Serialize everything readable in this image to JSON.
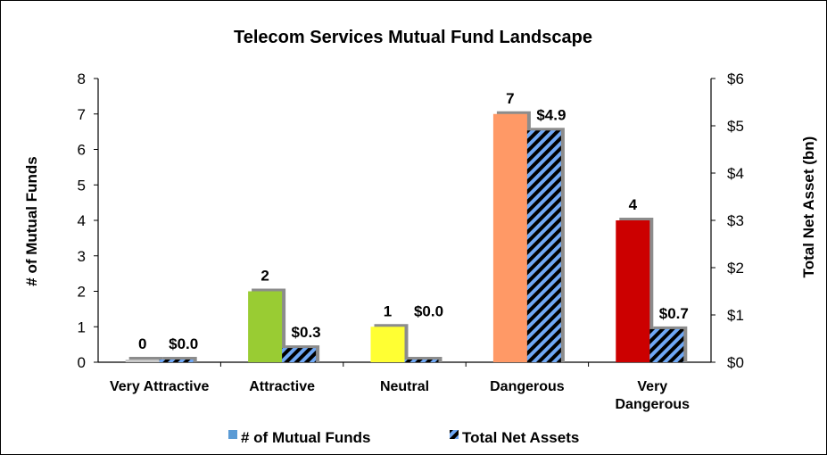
{
  "chart_data": {
    "type": "bar",
    "title": "Telecom Services Mutual Fund Landscape",
    "categories": [
      "Very Attractive",
      "Attractive",
      "Neutral",
      "Dangerous",
      "Very Dangerous"
    ],
    "y_left": {
      "label": "# of Mutual Funds",
      "ticks": [
        "0",
        "1",
        "2",
        "3",
        "4",
        "5",
        "6",
        "7",
        "8"
      ],
      "range": [
        0,
        8
      ]
    },
    "y_right": {
      "label": "Total Net Asset (bn)",
      "ticks": [
        "$0",
        "$1",
        "$2",
        "$3",
        "$4",
        "$5",
        "$6"
      ],
      "range": [
        0,
        6
      ]
    },
    "series": [
      {
        "name": "# of Mutual Funds",
        "axis": "left",
        "values": [
          0,
          2,
          1,
          7,
          4
        ],
        "labels": [
          "0",
          "2",
          "1",
          "7",
          "4"
        ],
        "colors": [
          "#c8c8c8",
          "#99cc33",
          "#ffff33",
          "#ff9966",
          "#cc0000"
        ]
      },
      {
        "name": "Total Net Assets",
        "axis": "right",
        "values": [
          0.0,
          0.3,
          0.0,
          4.9,
          0.7
        ],
        "labels": [
          "$0.0",
          "$0.3",
          "$0.0",
          "$4.9",
          "$0.7"
        ],
        "pattern": "black-blue-diagonal-stripes"
      }
    ],
    "legend": {
      "position": "bottom",
      "items": [
        "# of Mutual Funds",
        "Total Net Assets"
      ]
    },
    "colors": {
      "stripe_blue": "#6fa8f5",
      "legend_funds": "#5b9bd5",
      "shadow": "#8c8c8c"
    }
  }
}
